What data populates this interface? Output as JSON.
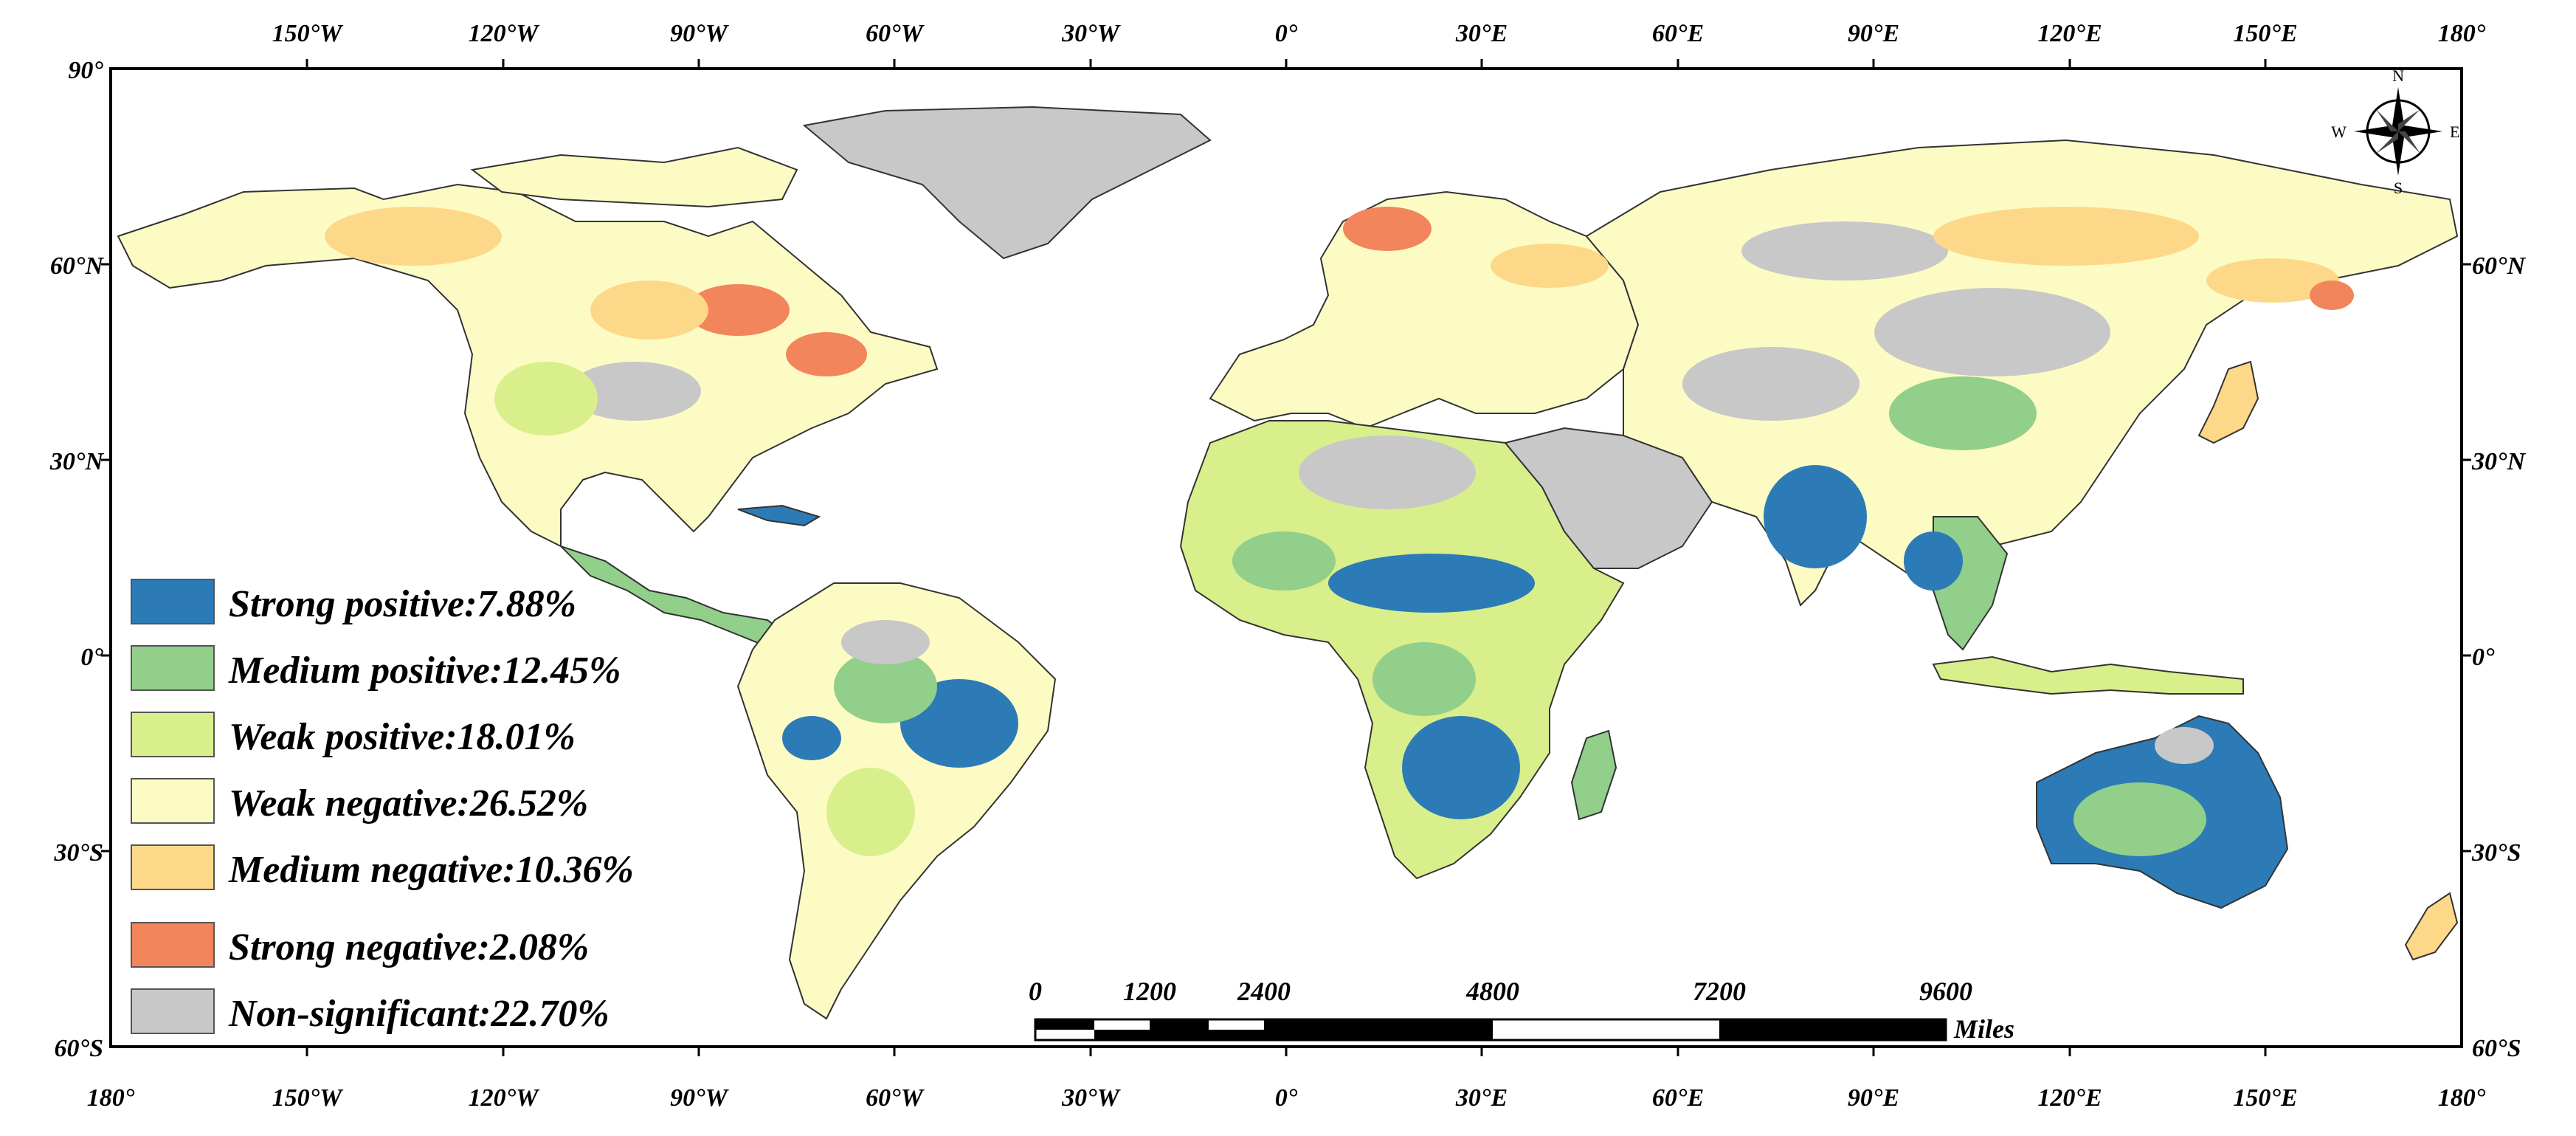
{
  "colors": {
    "strong_positive": "#2c7bb6",
    "medium_positive": "#91cf8a",
    "weak_positive": "#d9ef8b",
    "weak_negative": "#fdfbc4",
    "medium_negative": "#fdd888",
    "strong_negative": "#f2855b",
    "non_significant": "#c8c8c8",
    "ocean": "#ffffff",
    "border": "#333333"
  },
  "axes": {
    "top": [
      "150°W",
      "120°W",
      "90°W",
      "60°W",
      "30°W",
      "0°",
      "30°E",
      "60°E",
      "90°E",
      "120°E",
      "150°E",
      "180°"
    ],
    "bottom": [
      "180°",
      "150°W",
      "120°W",
      "90°W",
      "60°W",
      "30°W",
      "0°",
      "30°E",
      "60°E",
      "90°E",
      "120°E",
      "150°E",
      "180°"
    ],
    "left": [
      "90°",
      "60°N",
      "30°N",
      "0°",
      "30°S",
      "60°S"
    ],
    "right": [
      "60°N",
      "30°N",
      "0°",
      "30°S",
      "60°S"
    ]
  },
  "legend": [
    {
      "label": "Strong positive:7.88%",
      "color": "#2c7bb6"
    },
    {
      "label": "Medium positive:12.45%",
      "color": "#91cf8a"
    },
    {
      "label": "Weak positive:18.01%",
      "color": "#d9ef8b"
    },
    {
      "label": "Weak negative:26.52%",
      "color": "#fdfbc4"
    },
    {
      "label": "Medium negative:10.36%",
      "color": "#fdd888"
    },
    {
      "label": "Strong negative:2.08%",
      "color": "#f2855b"
    },
    {
      "label": "Non-significant:22.70%",
      "color": "#c8c8c8"
    }
  ],
  "scale_bar": {
    "labels": [
      "0",
      "1200",
      "2400",
      "4800",
      "7200",
      "9600"
    ],
    "unit": "Miles"
  },
  "compass": {
    "n": "N",
    "s": "S",
    "e": "E",
    "w": "W"
  }
}
